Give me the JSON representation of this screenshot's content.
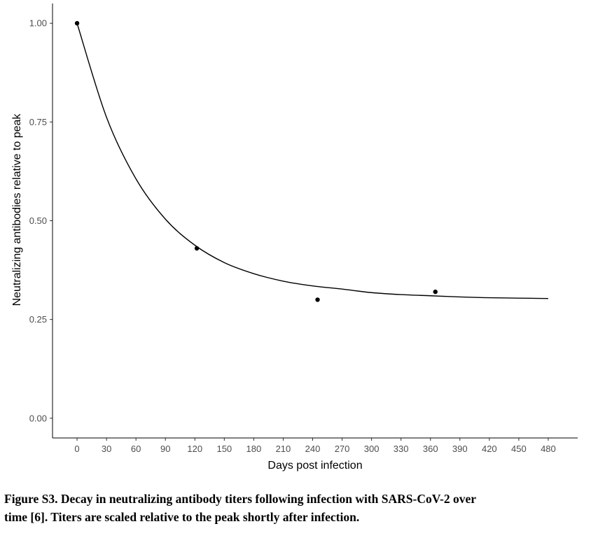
{
  "chart_data": {
    "type": "scatter",
    "xlabel": "Days post infection",
    "ylabel": "Neutralizing antibodies relative to peak",
    "xlim": [
      -25,
      510
    ],
    "ylim": [
      -0.05,
      1.05
    ],
    "x_ticks": [
      0,
      30,
      60,
      90,
      120,
      150,
      180,
      210,
      240,
      270,
      300,
      330,
      360,
      390,
      420,
      450,
      480
    ],
    "y_ticks": [
      0.0,
      0.25,
      0.5,
      0.75,
      1.0
    ],
    "y_tick_labels": [
      "0.00",
      "0.25",
      "0.50",
      "0.75",
      "1.00"
    ],
    "series": [
      {
        "name": "Observed titers",
        "kind": "points",
        "x": [
          0,
          122,
          245,
          365
        ],
        "y": [
          1.0,
          0.43,
          0.3,
          0.32
        ]
      },
      {
        "name": "Exponential decay fit",
        "kind": "line",
        "x": [
          0,
          30,
          60,
          90,
          120,
          150,
          180,
          210,
          240,
          270,
          300,
          330,
          360,
          390,
          420,
          450,
          480
        ],
        "y": [
          1.0,
          0.762,
          0.606,
          0.504,
          0.438,
          0.394,
          0.366,
          0.347,
          0.335,
          0.327,
          0.318,
          0.313,
          0.31,
          0.307,
          0.305,
          0.304,
          0.303
        ]
      }
    ],
    "grid": false,
    "colors": {
      "line": "#000000",
      "points": "#000000",
      "axis": "#000000",
      "tick_text": "#4d4d4d"
    }
  },
  "caption": {
    "line1": "Figure S3. Decay in neutralizing antibody titers following infection with SARS-CoV-2 over",
    "line2": "time [6]. Titers are scaled relative to the peak shortly after infection."
  }
}
